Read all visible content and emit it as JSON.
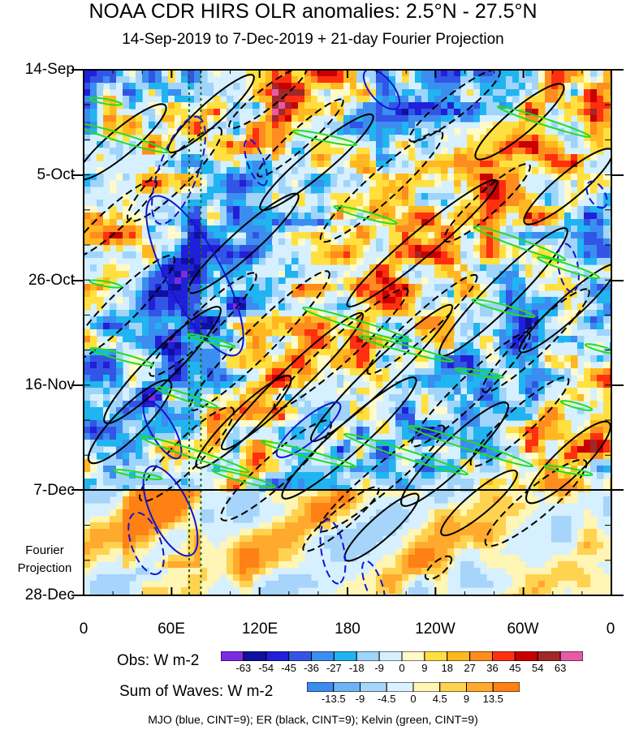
{
  "chart_data": {
    "type": "heatmap",
    "title": "NOAA CDR HIRS OLR anomalies: 2.5°N - 27.5°N",
    "subtitle": "14-Sep-2019 to 7-Dec-2019 + 21-day Fourier Projection",
    "y_tick_labels": [
      "14-Sep",
      "5-Oct",
      "26-Oct",
      "16-Nov",
      "7-Dec",
      "28-Dec"
    ],
    "x_tick_labels": [
      "0",
      "60E",
      "120E",
      "180",
      "120W",
      "60W",
      "0"
    ],
    "x_range_deg_east": [
      0,
      360
    ],
    "projection_label_line1": "Fourier",
    "projection_label_line2": "Projection",
    "obs_colorbar": {
      "title": "Obs: W m-2",
      "ticks": [
        "-63",
        "-54",
        "-45",
        "-36",
        "-27",
        "-18",
        "-9",
        "0",
        "9",
        "18",
        "27",
        "36",
        "45",
        "54",
        "63"
      ],
      "colors": [
        "#7d2be0",
        "#1010a0",
        "#2020d8",
        "#3355e6",
        "#3b8df0",
        "#20b4f0",
        "#a0d4fa",
        "#d6f0ff",
        "#fffac8",
        "#ffe040",
        "#ffb820",
        "#ff8c1e",
        "#ff3010",
        "#c80000",
        "#a02828",
        "#e65aa6"
      ]
    },
    "waves_colorbar": {
      "title": "Sum of Waves: W m-2",
      "ticks": [
        "-13.5",
        "-9",
        "-4.5",
        "0",
        "4.5",
        "9",
        "13.5"
      ],
      "colors": [
        "#3c8cf0",
        "#6eb4f5",
        "#a6d4fa",
        "#dcf0ff",
        "#fff5b4",
        "#ffd250",
        "#ffaa2d",
        "#ff8014"
      ]
    },
    "contours_caption": "MJO (blue, CINT=9); ER (black, CINT=9); Kelvin (green, CINT=9)",
    "series": [
      {
        "name": "MJO",
        "color": "#1414cc",
        "cint": 9
      },
      {
        "name": "ER",
        "color": "#000000",
        "cint": 9
      },
      {
        "name": "Kelvin",
        "color": "#22dd22",
        "cint": 9
      }
    ],
    "reference_longitudes_deg_east": [
      72,
      80
    ],
    "end_of_observations": "7-Dec"
  }
}
